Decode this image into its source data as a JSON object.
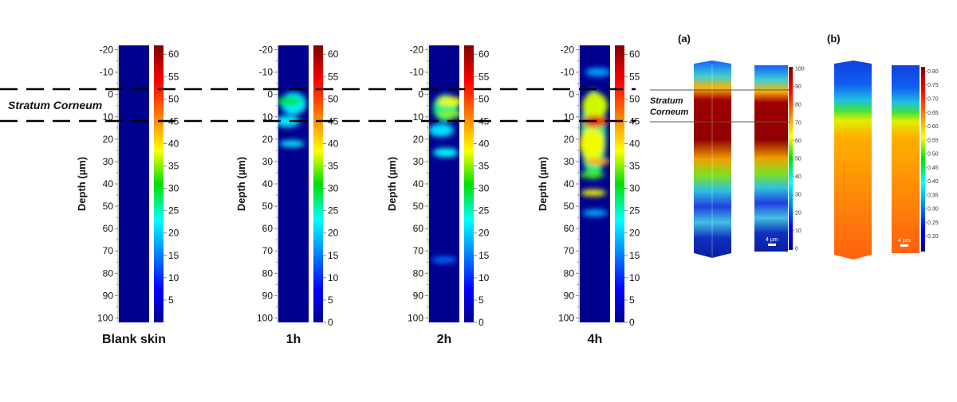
{
  "stratum_label": "Stratum Corneum",
  "stratum_label_right": [
    "Stratum",
    "Corneum"
  ],
  "scale_bar_label": "4 µm",
  "chart_data": [
    {
      "type": "heatmap",
      "ylabel": "Depth (µm)",
      "ylim": [
        -22,
        102
      ],
      "yticks": [
        -20,
        -10,
        0,
        10,
        20,
        30,
        40,
        50,
        60,
        70,
        80,
        90,
        100
      ],
      "colorbar_range": [
        0,
        62
      ],
      "stratum_corneum_depth": [
        -2,
        12
      ],
      "panels": [
        {
          "caption": "Blank skin",
          "colorbar_ticks": [
            5,
            10,
            15,
            20,
            25,
            30,
            35,
            40,
            45,
            50,
            55,
            60
          ],
          "hotspots": []
        },
        {
          "caption": "1h",
          "colorbar_ticks": [
            0,
            5,
            10,
            15,
            20,
            25,
            30,
            35,
            40,
            45,
            50,
            55,
            60
          ],
          "hotspots": [
            {
              "depth": 4,
              "span": 10,
              "value": 22,
              "lat": 0.5
            },
            {
              "depth": 12,
              "span": 5,
              "value": 22,
              "lat": 0.3
            },
            {
              "depth": 3,
              "span": 4,
              "value": 30,
              "lat": 0.35
            },
            {
              "depth": 22,
              "span": 3,
              "value": 22,
              "lat": 0.45
            }
          ]
        },
        {
          "caption": "2h",
          "colorbar_ticks": [
            0,
            5,
            10,
            15,
            20,
            25,
            30,
            35,
            40,
            45,
            50,
            55,
            60
          ],
          "hotspots": [
            {
              "depth": 16,
              "span": 6,
              "value": 21,
              "lat": 0.4
            },
            {
              "depth": 26,
              "span": 4,
              "value": 23,
              "lat": 0.55
            },
            {
              "depth": 74,
              "span": 2,
              "value": 14,
              "lat": 0.5
            },
            {
              "depth": 6,
              "span": 12,
              "value": 27,
              "lat": 0.55
            },
            {
              "depth": 3,
              "span": 4,
              "value": 38,
              "lat": 0.7
            },
            {
              "depth": 9,
              "span": 3,
              "value": 35,
              "lat": 0.7
            }
          ]
        },
        {
          "caption": "4h",
          "colorbar_ticks": [
            0,
            5,
            10,
            15,
            20,
            25,
            30,
            35,
            40,
            45,
            50,
            55,
            60
          ],
          "hotspots": [
            {
              "depth": -10,
              "span": 4,
              "value": 17,
              "lat": 0.6
            },
            {
              "depth": 53,
              "span": 3,
              "value": 18,
              "lat": 0.5
            },
            {
              "depth": 18,
              "span": 40,
              "value": 27,
              "lat": 0.45
            },
            {
              "depth": 5,
              "span": 12,
              "value": 37,
              "lat": 0.5
            },
            {
              "depth": 22,
              "span": 14,
              "value": 38,
              "lat": 0.4
            },
            {
              "depth": 36,
              "span": 3,
              "value": 33,
              "lat": 0.4
            },
            {
              "depth": 44,
              "span": 3,
              "value": 38,
              "lat": 0.45
            },
            {
              "depth": 30,
              "span": 3,
              "value": 44,
              "lat": 0.6
            },
            {
              "depth": 12,
              "span": 5,
              "value": 55,
              "lat": 0.5
            }
          ]
        }
      ]
    },
    {
      "type": "heatmap",
      "panel_label": "(a)",
      "colorbar_range": [
        0,
        100
      ],
      "colorbar_ticks": [
        0,
        10,
        20,
        30,
        40,
        50,
        60,
        70,
        80,
        90,
        100
      ]
    },
    {
      "type": "heatmap",
      "panel_label": "(b)",
      "colorbar_range": [
        0.15,
        0.81
      ],
      "colorbar_ticks": [
        "0.20",
        "0.25",
        "0.30",
        "0.35",
        "0.40",
        "0.45",
        "0.50",
        "0.55",
        "0.60",
        "0.65",
        "0.70",
        "0.75",
        "0.80"
      ]
    }
  ]
}
